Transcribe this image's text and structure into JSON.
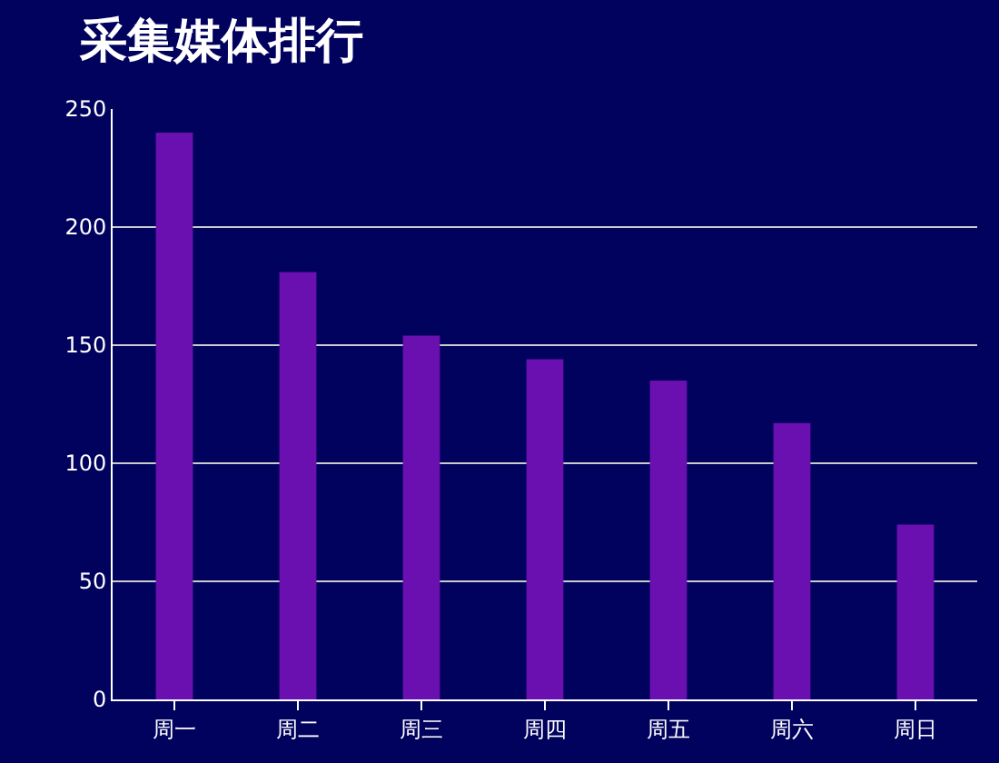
{
  "chart_data": {
    "type": "bar",
    "title": "采集媒体排行",
    "categories": [
      "周一",
      "周二",
      "周三",
      "周四",
      "周五",
      "周六",
      "周日"
    ],
    "values": [
      240,
      181,
      154,
      144,
      135,
      117,
      74
    ],
    "color": "#6a0fb0",
    "ylim": [
      0,
      250
    ],
    "yticks": [
      0,
      50,
      100,
      150,
      200,
      250
    ],
    "grid": "y",
    "legend": false
  }
}
